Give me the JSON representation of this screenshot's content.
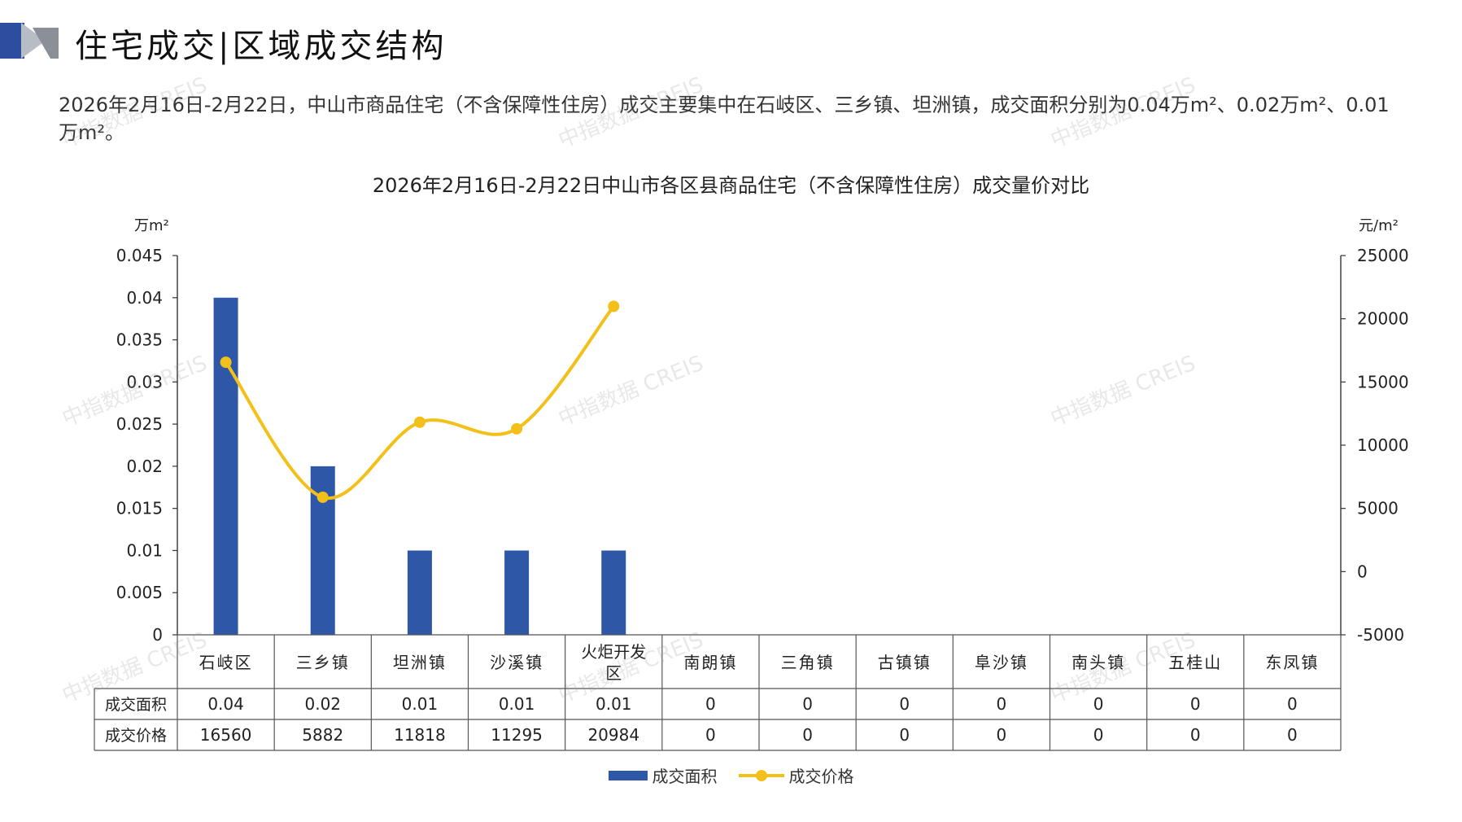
{
  "page": {
    "title": "住宅成交|区域成交结构",
    "summary": "2026年2月16日-2月22日，中山市商品住宅（不含保障性住房）成交主要集中在石岐区、三乡镇、坦洲镇，成交面积分别为0.04万m²、0.02万m²、0.01万m²。",
    "watermark": "中指数据 CREIS"
  },
  "colors": {
    "bar": "#2f57a8",
    "line": "#f3c01a",
    "logo_blue": "#2d4e9e",
    "logo_gray": "#b8bcc4"
  },
  "chart_data": {
    "type": "bar",
    "title": "2026年2月16日-2月22日中山市各区县商品住宅（不含保障性住房）成交量价对比",
    "categories": [
      "石岐区",
      "三乡镇",
      "坦洲镇",
      "沙溪镇",
      "火炬开发区",
      "南朗镇",
      "三角镇",
      "古镇镇",
      "阜沙镇",
      "南头镇",
      "五桂山",
      "东凤镇"
    ],
    "y_left": {
      "unit": "万m²",
      "ticks": [
        "0.045",
        "0.04",
        "0.035",
        "0.03",
        "0.025",
        "0.02",
        "0.015",
        "0.01",
        "0.005",
        "0"
      ],
      "min": 0,
      "max": 0.045
    },
    "y_right": {
      "unit": "元/m²",
      "ticks": [
        "25000",
        "20000",
        "15000",
        "10000",
        "5000",
        "0",
        "-5000"
      ],
      "min": -5000,
      "max": 25000
    },
    "series": [
      {
        "name": "成交面积",
        "type": "bar",
        "axis": "left",
        "values": [
          0.04,
          0.02,
          0.01,
          0.01,
          0.01,
          0,
          0,
          0,
          0,
          0,
          0,
          0
        ]
      },
      {
        "name": "成交价格",
        "type": "line",
        "axis": "right",
        "values": [
          16560,
          5882,
          11818,
          11295,
          20984,
          null,
          null,
          null,
          null,
          null,
          null,
          null
        ]
      }
    ],
    "table": {
      "rows": [
        {
          "label": "成交面积",
          "cells": [
            "0.04",
            "0.02",
            "0.01",
            "0.01",
            "0.01",
            "0",
            "0",
            "0",
            "0",
            "0",
            "0",
            "0"
          ]
        },
        {
          "label": "成交价格",
          "cells": [
            "16560",
            "5882",
            "11818",
            "11295",
            "20984",
            "0",
            "0",
            "0",
            "0",
            "0",
            "0",
            "0"
          ]
        }
      ]
    },
    "legend": {
      "position": "bottom",
      "items": [
        "成交面积",
        "成交价格"
      ]
    },
    "grid": false
  }
}
